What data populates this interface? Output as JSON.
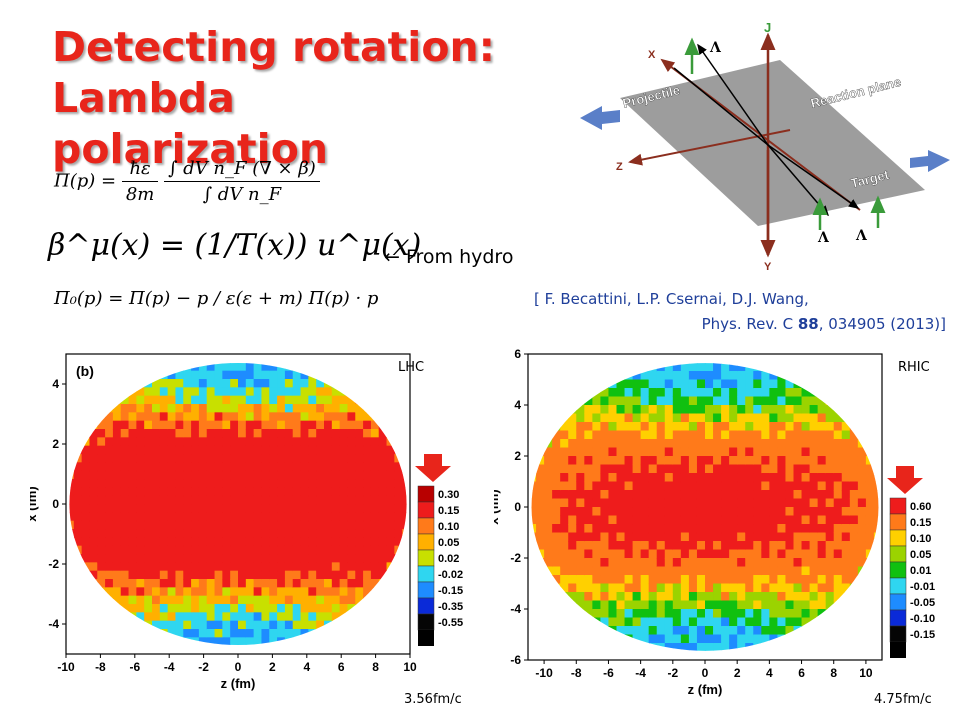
{
  "title_line1": "Detecting rotation:",
  "title_line2": "Lambda polarization",
  "eq1": {
    "lhs": "Π(p) =",
    "num_left": "ħε",
    "den_left": "8m",
    "num_right": "∫ dV n_F (∇ × β)",
    "den_right": "∫ dV n_F"
  },
  "eq2": "β^μ(x) = (1/T(x)) u^μ(x)",
  "eq3": "Π₀(p) = Π(p) − p / ε(ε + m) Π(p) · p",
  "hydro_note": "←  From hydro",
  "citation": {
    "line1": "[ F. Becattini, L.P. Csernai, D.J. Wang,",
    "line2_pre": "Phys. Rev. C ",
    "line2_bold": "88",
    "line2_post": ", 034905 (2013)]"
  },
  "diagram": {
    "labels": {
      "j": "J",
      "x": "X",
      "z": "Z",
      "y": "Y",
      "projectile": "Projectile",
      "reaction_plane": "Reaction plane",
      "target": "Target",
      "lambda": "Λ"
    },
    "colors": {
      "plane": "#8c8c8c",
      "axis": "#8b2e1e",
      "green": "#3a9b3a",
      "arrow_blue": "#5a7fc8"
    }
  },
  "chart_data": [
    {
      "type": "heatmap",
      "panel_label": "(b)",
      "corner_label": "LHC",
      "time_label": "3.56fm/c",
      "xlabel": "z (fm)",
      "ylabel": "x (fm)",
      "xlim": [
        -10,
        10
      ],
      "ylim": [
        -5,
        5
      ],
      "x_ticks": [
        "-10",
        "-8",
        "-6",
        "-4",
        "-2",
        "0",
        "2",
        "4",
        "6",
        "8",
        "10"
      ],
      "y_ticks": [
        "4",
        "2",
        "0",
        "-2",
        "-4"
      ],
      "legend_levels": [
        "0.30",
        "0.15",
        "0.10",
        "0.05",
        "0.02",
        "-0.02",
        "-0.15",
        "-0.35",
        "-0.55"
      ],
      "legend_colors": [
        "#b80000",
        "#ee1c1c",
        "#ff7a1a",
        "#ffb000",
        "#c8e000",
        "#2fd6f0",
        "#1e8cff",
        "#0a2ad8",
        "#050505"
      ]
    },
    {
      "type": "heatmap",
      "corner_label": "RHIC",
      "time_label": "4.75fm/c",
      "xlabel": "z (fm)",
      "ylabel": "x (fm)",
      "xlim": [
        -11,
        11
      ],
      "ylim": [
        -6,
        6
      ],
      "x_ticks": [
        "-10",
        "-8",
        "-6",
        "-4",
        "-2",
        "0",
        "2",
        "4",
        "6",
        "8",
        "10"
      ],
      "y_ticks": [
        "6",
        "4",
        "2",
        "0",
        "-2",
        "-4",
        "-6"
      ],
      "legend_levels": [
        "0.60",
        "0.15",
        "0.10",
        "0.05",
        "0.01",
        "-0.01",
        "-0.05",
        "-0.10",
        "-0.15"
      ],
      "legend_colors": [
        "#ee1c1c",
        "#ff7a1a",
        "#ffd000",
        "#9bd300",
        "#10c010",
        "#2fd6f0",
        "#1e8cff",
        "#0a2ad8",
        "#050505"
      ]
    }
  ]
}
